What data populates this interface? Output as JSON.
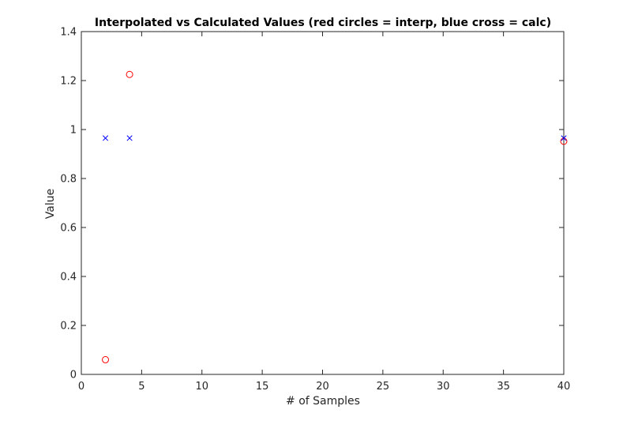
{
  "chart_data": {
    "type": "scatter",
    "title": "Interpolated vs Calculated Values (red circles = interp, blue cross = calc)",
    "xlabel": "# of Samples",
    "ylabel": "Value",
    "xlim": [
      0,
      40
    ],
    "ylim": [
      0,
      1.4
    ],
    "x_ticks": [
      0,
      5,
      10,
      15,
      20,
      25,
      30,
      35,
      40
    ],
    "y_ticks": [
      0,
      0.2,
      0.4,
      0.6,
      0.8,
      1,
      1.2,
      1.4
    ],
    "x_tick_labels": [
      "0",
      "5",
      "10",
      "15",
      "20",
      "25",
      "30",
      "35",
      "40"
    ],
    "y_tick_labels": [
      "0",
      "0.2",
      "0.4",
      "0.6",
      "0.8",
      "1",
      "1.2",
      "1.4"
    ],
    "grid": false,
    "series": [
      {
        "marker": "circle",
        "color": "#ff0000",
        "points": [
          {
            "x": 2,
            "y": 0.06
          },
          {
            "x": 4,
            "y": 1.225
          },
          {
            "x": 40,
            "y": 0.952
          }
        ]
      },
      {
        "marker": "cross",
        "color": "#0000ff",
        "points": [
          {
            "x": 2,
            "y": 0.965
          },
          {
            "x": 4,
            "y": 0.965
          },
          {
            "x": 40,
            "y": 0.965
          }
        ]
      }
    ]
  }
}
